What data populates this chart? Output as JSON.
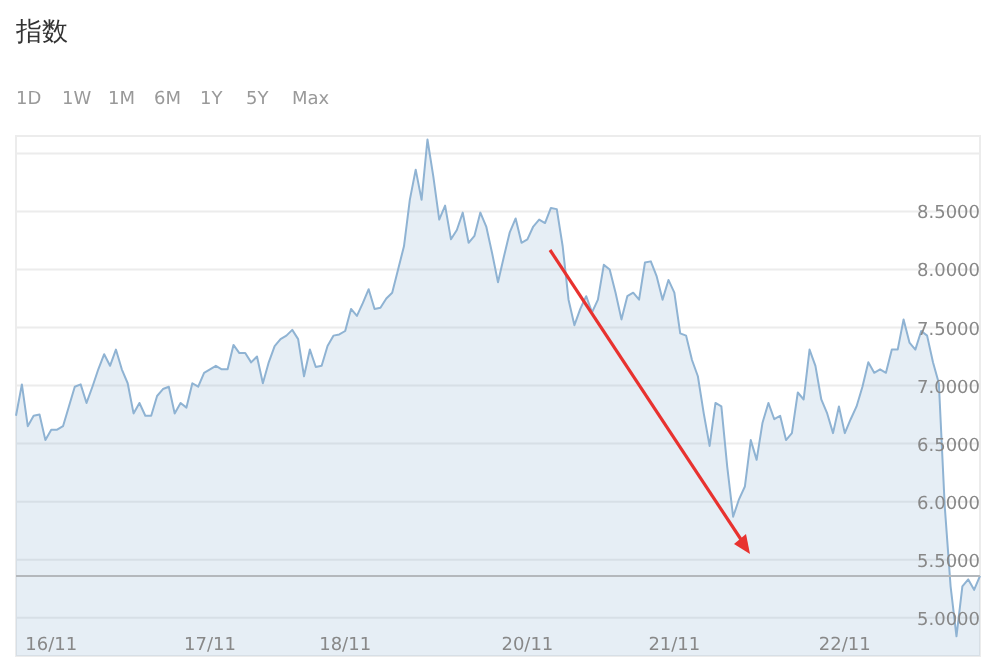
{
  "chart_data": {
    "type": "area",
    "title": "指数",
    "annotations": [
      "1D",
      "1W",
      "1M",
      "6M",
      "1Y",
      "5Y",
      "Max"
    ],
    "categories": [
      null,
      null,
      null,
      null,
      null,
      null,
      "16/11",
      null,
      null,
      null,
      null,
      null,
      null,
      null,
      null,
      null,
      null,
      null,
      null,
      null,
      null,
      null,
      null,
      null,
      null,
      null,
      null,
      null,
      null,
      null,
      null,
      null,
      null,
      "17/11",
      null,
      null,
      null,
      null,
      null,
      null,
      null,
      null,
      null,
      null,
      null,
      null,
      null,
      null,
      null,
      null,
      null,
      null,
      null,
      null,
      null,
      null,
      "18/11",
      null,
      null,
      null,
      null,
      null,
      null,
      null,
      null,
      null,
      null,
      null,
      null,
      null,
      null,
      null,
      null,
      null,
      null,
      null,
      null,
      null,
      null,
      null,
      null,
      null,
      null,
      null,
      null,
      null,
      null,
      "20/11",
      null,
      null,
      null,
      null,
      null,
      null,
      null,
      null,
      null,
      null,
      null,
      null,
      null,
      null,
      null,
      null,
      null,
      null,
      null,
      null,
      null,
      null,
      null,
      null,
      "21/11",
      null,
      null,
      null,
      null,
      null,
      null,
      null,
      null,
      null,
      null,
      null,
      null,
      null,
      null,
      null,
      null,
      null,
      null,
      null,
      null,
      null,
      null,
      null,
      null,
      null,
      null,
      null,
      null,
      "22/11",
      null,
      null,
      null,
      null,
      null,
      null,
      null,
      null,
      null,
      null,
      null,
      null,
      null,
      null,
      null,
      null,
      null,
      null,
      null,
      null,
      null,
      null,
      null
    ],
    "series": [
      {
        "color": "#8fb3d3",
        "values": [
          6.74,
          7.01,
          6.65,
          6.74,
          6.75,
          6.53,
          6.62,
          6.62,
          6.65,
          6.82,
          6.99,
          7.01,
          6.85,
          6.99,
          7.14,
          7.27,
          7.17,
          7.31,
          7.14,
          7.02,
          6.76,
          6.85,
          6.74,
          6.74,
          6.91,
          6.97,
          6.99,
          6.76,
          6.85,
          6.81,
          7.02,
          6.99,
          7.11,
          7.14,
          7.17,
          7.14,
          7.14,
          7.35,
          7.28,
          7.28,
          7.2,
          7.25,
          7.02,
          7.2,
          7.34,
          7.4,
          7.43,
          7.48,
          7.4,
          7.08,
          7.31,
          7.16,
          7.17,
          7.34,
          7.43,
          7.44,
          7.47,
          7.66,
          7.6,
          7.71,
          7.83,
          7.66,
          7.67,
          7.75,
          7.8,
          8.0,
          8.2,
          8.6,
          8.86,
          8.6,
          9.12,
          8.8,
          8.43,
          8.55,
          8.26,
          8.34,
          8.49,
          8.23,
          8.29,
          8.49,
          8.37,
          8.14,
          7.89,
          8.11,
          8.32,
          8.44,
          8.23,
          8.26,
          8.37,
          8.43,
          8.4,
          8.53,
          8.52,
          8.2,
          7.74,
          7.52,
          7.66,
          7.77,
          7.63,
          7.74,
          8.04,
          8.0,
          7.8,
          7.57,
          7.77,
          7.8,
          7.74,
          8.06,
          8.07,
          7.94,
          7.74,
          7.91,
          7.8,
          7.45,
          7.43,
          7.22,
          7.08,
          6.76,
          6.48,
          6.85,
          6.82,
          6.3,
          5.87,
          6.02,
          6.13,
          6.53,
          6.36,
          6.68,
          6.85,
          6.71,
          6.74,
          6.53,
          6.59,
          6.94,
          6.88,
          7.31,
          7.17,
          6.88,
          6.76,
          6.59,
          6.82,
          6.59,
          6.71,
          6.82,
          6.99,
          7.2,
          7.11,
          7.14,
          7.11,
          7.31,
          7.31,
          7.57,
          7.37,
          7.31,
          7.47,
          7.43,
          7.2,
          7.02,
          5.96,
          5.27,
          4.84,
          5.27,
          5.33,
          5.24,
          5.36
        ]
      }
    ],
    "ylim": [
      4.67,
      9.15
    ],
    "yticks": [
      {
        "value": 5,
        "label": "5.0000"
      },
      {
        "value": 5.5,
        "label": "5.5000"
      },
      {
        "value": 6,
        "label": "6.0000"
      },
      {
        "value": 6.5,
        "label": "6.5000"
      },
      {
        "value": 7,
        "label": "7.0000"
      },
      {
        "value": 7.5,
        "label": "7.5000"
      },
      {
        "value": 8,
        "label": "8.0000"
      },
      {
        "value": 8.5,
        "label": "8.5000"
      },
      {
        "value": 9,
        "label": null
      }
    ],
    "grid": "y",
    "ref_lines": [
      {
        "axis": "y",
        "value": 5.36,
        "color": "#b4b8bc"
      }
    ]
  }
}
